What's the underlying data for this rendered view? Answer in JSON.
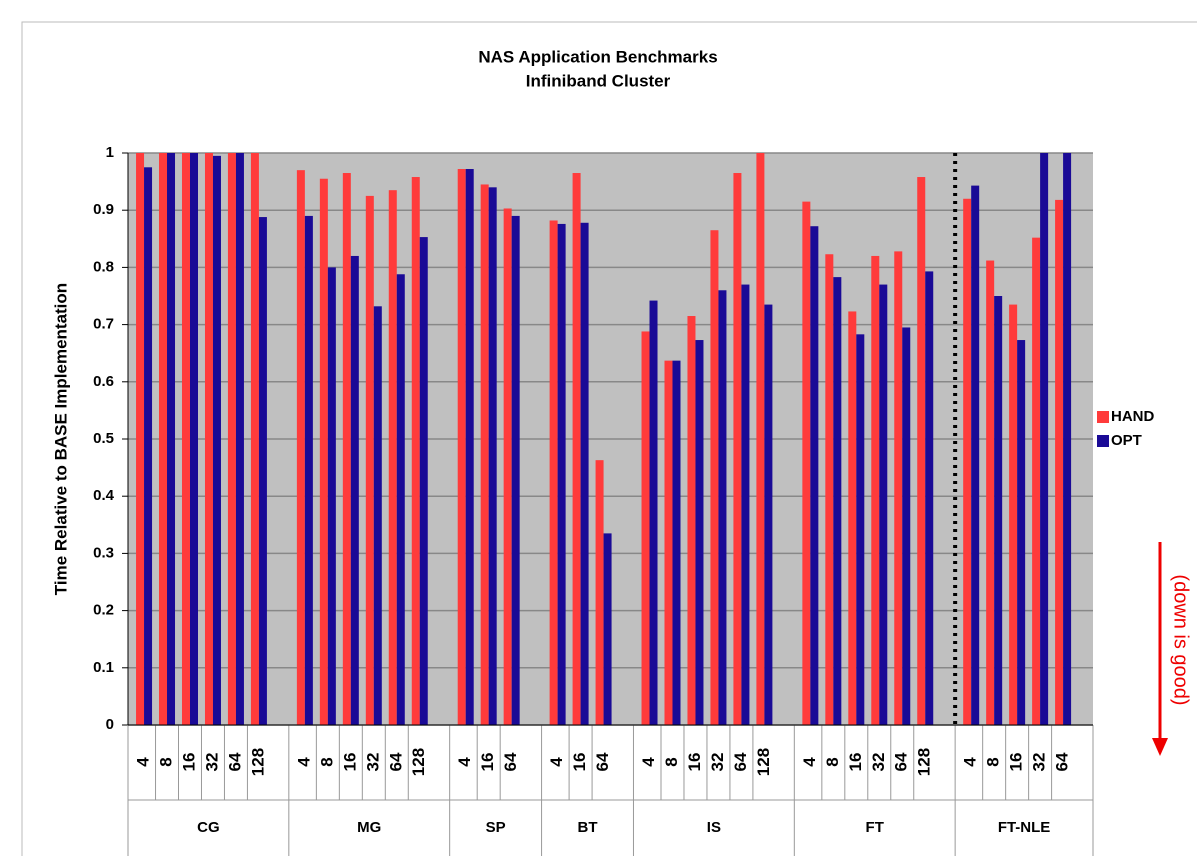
{
  "chart_data": {
    "type": "bar",
    "title": "NAS Application Benchmarks",
    "subtitle": "Infiniband Cluster",
    "y_label": "Time Relative to BASE Implementation",
    "annotation": "(down is good)",
    "groups": [
      {
        "name": "CG",
        "labels": [
          "4",
          "8",
          "16",
          "32",
          "64",
          "128"
        ]
      },
      {
        "name": "MG",
        "labels": [
          "4",
          "8",
          "16",
          "32",
          "64",
          "128"
        ]
      },
      {
        "name": "SP",
        "labels": [
          "4",
          "16",
          "64"
        ]
      },
      {
        "name": "BT",
        "labels": [
          "4",
          "16",
          "64"
        ]
      },
      {
        "name": "IS",
        "labels": [
          "4",
          "8",
          "16",
          "32",
          "64",
          "128"
        ]
      },
      {
        "name": "FT",
        "labels": [
          "4",
          "8",
          "16",
          "32",
          "64",
          "128"
        ]
      },
      {
        "name": "FT-NLE",
        "labels": [
          "4",
          "8",
          "16",
          "32",
          "64"
        ]
      }
    ],
    "series": [
      {
        "name": "HAND",
        "color": "#ff3b3b",
        "values": [
          1,
          1,
          1,
          1,
          1,
          1,
          0.97,
          0.955,
          0.965,
          0.925,
          0.935,
          0.958,
          0.972,
          0.945,
          0.903,
          0.882,
          0.965,
          0.463,
          0.688,
          0.637,
          0.715,
          0.865,
          0.965,
          1,
          0.915,
          0.823,
          0.723,
          0.82,
          0.828,
          0.958,
          0.92,
          0.812,
          0.735,
          0.852,
          0.918
        ]
      },
      {
        "name": "OPT",
        "color": "#1a0a96",
        "values": [
          0.975,
          1,
          1,
          0.995,
          1,
          0.888,
          0.89,
          0.8,
          0.82,
          0.732,
          0.788,
          0.853,
          0.972,
          0.94,
          0.89,
          0.876,
          0.878,
          0.335,
          0.742,
          0.637,
          0.673,
          0.76,
          0.77,
          0.735,
          0.872,
          0.783,
          0.683,
          0.77,
          0.695,
          0.793,
          0.943,
          0.75,
          0.673,
          1,
          1
        ]
      }
    ],
    "ylim": [
      0,
      1
    ],
    "yticks": [
      0,
      0.1,
      0.2,
      0.3,
      0.4,
      0.5,
      0.6,
      0.7,
      0.8,
      0.9,
      1
    ],
    "grid": true,
    "legend": "right"
  }
}
